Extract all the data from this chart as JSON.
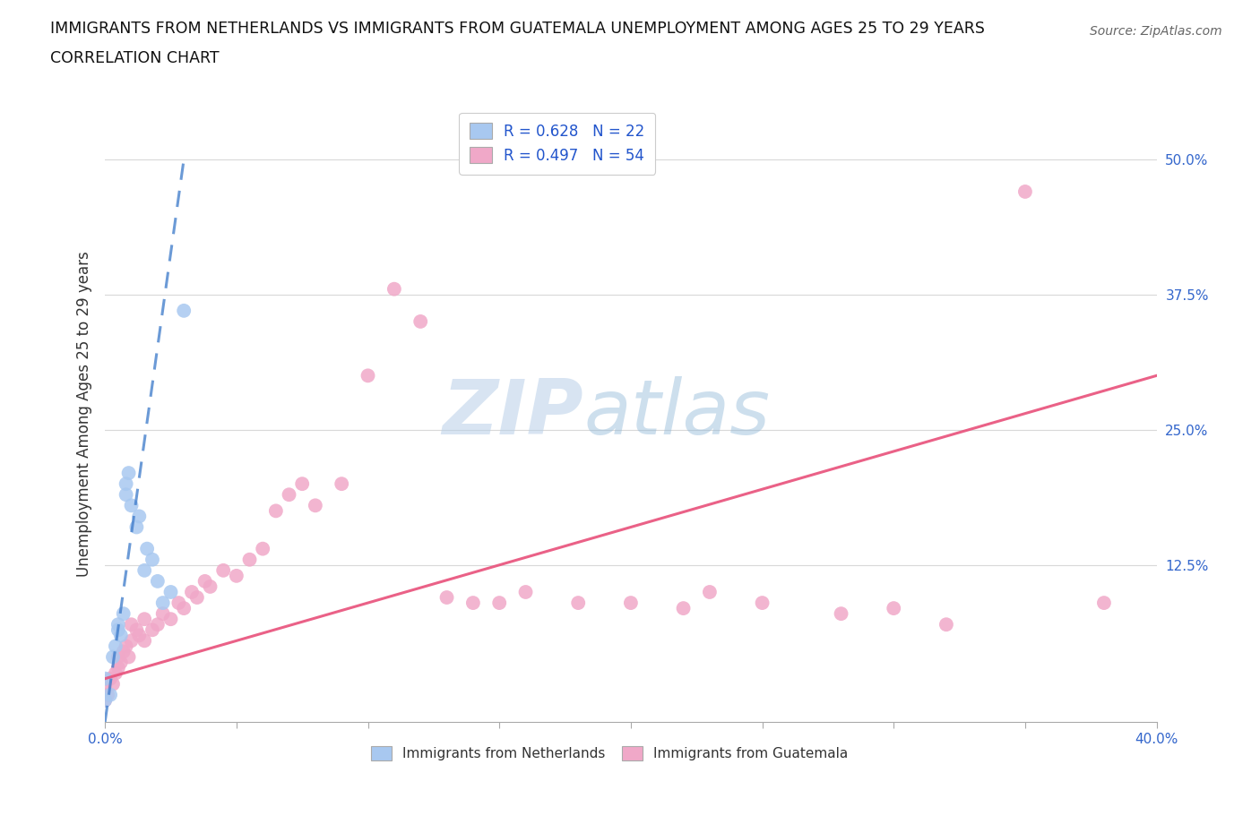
{
  "title_line1": "IMMIGRANTS FROM NETHERLANDS VS IMMIGRANTS FROM GUATEMALA UNEMPLOYMENT AMONG AGES 25 TO 29 YEARS",
  "title_line2": "CORRELATION CHART",
  "source": "Source: ZipAtlas.com",
  "ylabel": "Unemployment Among Ages 25 to 29 years",
  "xlim": [
    0.0,
    0.4
  ],
  "ylim": [
    -0.02,
    0.55
  ],
  "ytick_vals": [
    0.125,
    0.25,
    0.375,
    0.5
  ],
  "ytick_labels": [
    "12.5%",
    "25.0%",
    "37.5%",
    "50.0%"
  ],
  "xtick_vals": [
    0.0,
    0.05,
    0.1,
    0.15,
    0.2,
    0.25,
    0.3,
    0.35,
    0.4
  ],
  "xtick_labels": [
    "0.0%",
    "",
    "",
    "",
    "",
    "",
    "",
    "",
    "40.0%"
  ],
  "netherlands_color": "#a8c8f0",
  "guatemala_color": "#f0a8c8",
  "netherlands_line_color": "#3a78c9",
  "guatemala_line_color": "#e8507a",
  "netherlands_R": 0.628,
  "netherlands_N": 22,
  "guatemala_R": 0.497,
  "guatemala_N": 54,
  "legend_R_color": "#2255cc",
  "netherlands_x": [
    0.0,
    0.0,
    0.002,
    0.003,
    0.004,
    0.005,
    0.005,
    0.006,
    0.007,
    0.008,
    0.008,
    0.009,
    0.01,
    0.012,
    0.013,
    0.015,
    0.016,
    0.018,
    0.02,
    0.022,
    0.025,
    0.03
  ],
  "netherlands_y": [
    0.0,
    0.02,
    0.005,
    0.04,
    0.05,
    0.065,
    0.07,
    0.06,
    0.08,
    0.19,
    0.2,
    0.21,
    0.18,
    0.16,
    0.17,
    0.12,
    0.14,
    0.13,
    0.11,
    0.09,
    0.1,
    0.36
  ],
  "guatemala_x": [
    0.0,
    0.0,
    0.001,
    0.002,
    0.003,
    0.004,
    0.005,
    0.005,
    0.006,
    0.007,
    0.008,
    0.009,
    0.01,
    0.01,
    0.012,
    0.013,
    0.015,
    0.015,
    0.018,
    0.02,
    0.022,
    0.025,
    0.028,
    0.03,
    0.033,
    0.035,
    0.038,
    0.04,
    0.045,
    0.05,
    0.055,
    0.06,
    0.065,
    0.07,
    0.075,
    0.08,
    0.09,
    0.1,
    0.11,
    0.12,
    0.13,
    0.14,
    0.15,
    0.16,
    0.18,
    0.2,
    0.22,
    0.23,
    0.25,
    0.28,
    0.3,
    0.32,
    0.35,
    0.38
  ],
  "guatemala_y": [
    0.0,
    0.01,
    0.005,
    0.02,
    0.015,
    0.025,
    0.03,
    0.04,
    0.035,
    0.045,
    0.05,
    0.04,
    0.055,
    0.07,
    0.065,
    0.06,
    0.055,
    0.075,
    0.065,
    0.07,
    0.08,
    0.075,
    0.09,
    0.085,
    0.1,
    0.095,
    0.11,
    0.105,
    0.12,
    0.115,
    0.13,
    0.14,
    0.175,
    0.19,
    0.2,
    0.18,
    0.2,
    0.3,
    0.38,
    0.35,
    0.095,
    0.09,
    0.09,
    0.1,
    0.09,
    0.09,
    0.085,
    0.1,
    0.09,
    0.08,
    0.085,
    0.07,
    0.47,
    0.09
  ],
  "nl_line_x": [
    0.0,
    0.03
  ],
  "nl_line_y": [
    -0.02,
    0.5
  ],
  "gt_line_x": [
    0.0,
    0.4
  ],
  "gt_line_y": [
    0.02,
    0.3
  ],
  "watermark_zip": "ZIP",
  "watermark_atlas": "atlas",
  "background_color": "#ffffff",
  "grid_color": "#d8d8d8"
}
